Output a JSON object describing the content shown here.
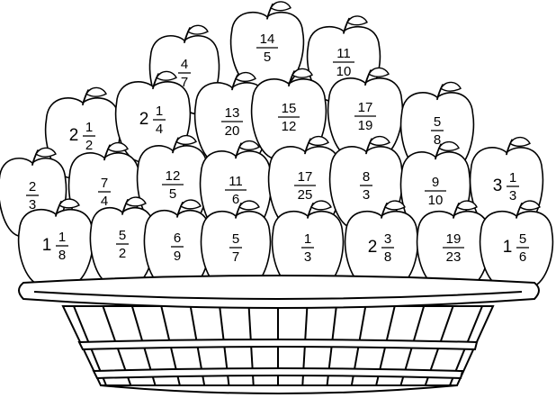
{
  "apples": [
    {
      "whole": "",
      "num": "4",
      "den": "7"
    },
    {
      "whole": "",
      "num": "14",
      "den": "5"
    },
    {
      "whole": "",
      "num": "11",
      "den": "10"
    },
    {
      "whole": "2",
      "num": "1",
      "den": "2"
    },
    {
      "whole": "2",
      "num": "1",
      "den": "4"
    },
    {
      "whole": "",
      "num": "13",
      "den": "20"
    },
    {
      "whole": "",
      "num": "15",
      "den": "12"
    },
    {
      "whole": "",
      "num": "17",
      "den": "19"
    },
    {
      "whole": "",
      "num": "5",
      "den": "8"
    },
    {
      "whole": "",
      "num": "2",
      "den": "3"
    },
    {
      "whole": "",
      "num": "7",
      "den": "4"
    },
    {
      "whole": "",
      "num": "12",
      "den": "5"
    },
    {
      "whole": "",
      "num": "11",
      "den": "6"
    },
    {
      "whole": "",
      "num": "17",
      "den": "25"
    },
    {
      "whole": "",
      "num": "8",
      "den": "3"
    },
    {
      "whole": "",
      "num": "9",
      "den": "10"
    },
    {
      "whole": "3",
      "num": "1",
      "den": "3"
    },
    {
      "whole": "1",
      "num": "1",
      "den": "8"
    },
    {
      "whole": "",
      "num": "5",
      "den": "2"
    },
    {
      "whole": "",
      "num": "6",
      "den": "9"
    },
    {
      "whole": "",
      "num": "5",
      "den": "7"
    },
    {
      "whole": "",
      "num": "1",
      "den": "3"
    },
    {
      "whole": "2",
      "num": "3",
      "den": "8"
    },
    {
      "whole": "",
      "num": "19",
      "den": "23"
    },
    {
      "whole": "1",
      "num": "5",
      "den": "6"
    }
  ],
  "icons": {
    "apple": "apple-icon",
    "basket": "basket-icon"
  },
  "colors": {
    "line": "#000000",
    "fill": "#ffffff"
  }
}
